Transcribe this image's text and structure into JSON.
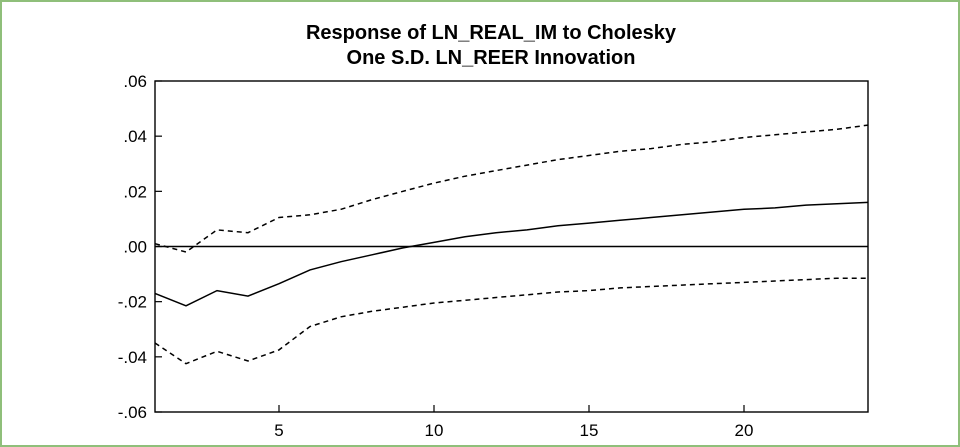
{
  "colors": {
    "frame_border": "#8fbf7a",
    "line": "#000000"
  },
  "chart_data": {
    "type": "line",
    "title_lines": [
      "Response of LN_REAL_IM to Cholesky",
      "One S.D. LN_REER Innovation"
    ],
    "xlabel": "",
    "ylabel": "",
    "xlim": [
      1,
      24
    ],
    "ylim": [
      -0.06,
      0.06
    ],
    "x_ticks": [
      5,
      10,
      15,
      20
    ],
    "x_tick_labels": [
      "5",
      "10",
      "15",
      "20"
    ],
    "y_ticks": [
      -0.06,
      -0.04,
      -0.02,
      0.0,
      0.02,
      0.04,
      0.06
    ],
    "y_tick_labels": [
      "-.06",
      "-.04",
      "-.02",
      ".00",
      ".02",
      ".04",
      ".06"
    ],
    "zero_line": true,
    "grid": false,
    "x": [
      1,
      2,
      3,
      4,
      5,
      6,
      7,
      8,
      9,
      10,
      11,
      12,
      13,
      14,
      15,
      16,
      17,
      18,
      19,
      20,
      21,
      22,
      23,
      24
    ],
    "series": [
      {
        "style": "solid",
        "values": [
          -0.017,
          -0.0215,
          -0.016,
          -0.018,
          -0.0135,
          -0.0085,
          -0.0055,
          -0.003,
          -0.0005,
          0.0015,
          0.0035,
          0.005,
          0.006,
          0.0075,
          0.0085,
          0.0095,
          0.0105,
          0.0115,
          0.0125,
          0.0135,
          0.014,
          0.015,
          0.0155,
          0.016
        ]
      },
      {
        "style": "dashed",
        "values": [
          0.001,
          -0.002,
          0.006,
          0.005,
          0.0105,
          0.0115,
          0.0135,
          0.017,
          0.02,
          0.023,
          0.0255,
          0.0275,
          0.0295,
          0.0315,
          0.033,
          0.0345,
          0.0355,
          0.037,
          0.038,
          0.0395,
          0.0405,
          0.0415,
          0.0425,
          0.044
        ]
      },
      {
        "style": "dashed",
        "values": [
          -0.035,
          -0.0425,
          -0.038,
          -0.0415,
          -0.0375,
          -0.029,
          -0.0255,
          -0.0235,
          -0.022,
          -0.0205,
          -0.0195,
          -0.0185,
          -0.0175,
          -0.0165,
          -0.016,
          -0.015,
          -0.0145,
          -0.014,
          -0.0135,
          -0.013,
          -0.0125,
          -0.012,
          -0.0115,
          -0.0115
        ]
      }
    ]
  }
}
